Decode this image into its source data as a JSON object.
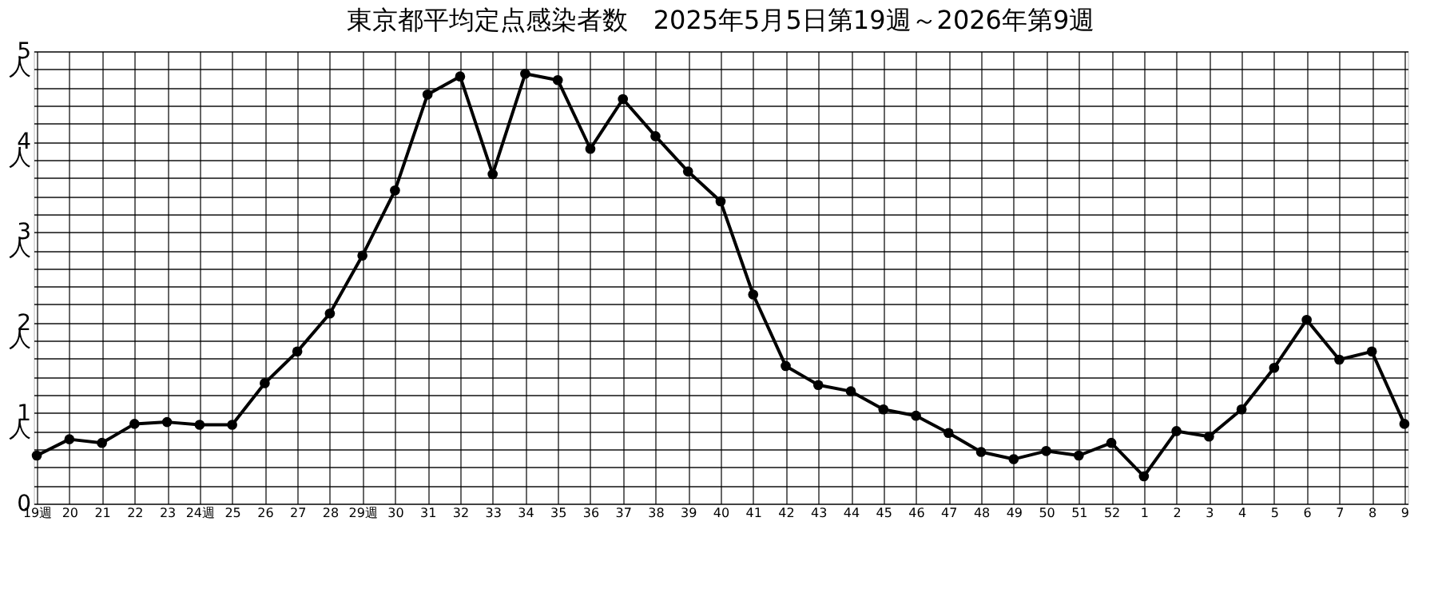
{
  "chart_data": {
    "type": "line",
    "title": "東京都平均定点感染者数　2025年5月5日第19週～2026年第9週",
    "categories": [
      "19週",
      "20",
      "21",
      "22",
      "23",
      "24週",
      "25",
      "26",
      "27",
      "28",
      "29週",
      "30",
      "31",
      "32",
      "33",
      "34",
      "35",
      "36",
      "37",
      "38",
      "39",
      "40",
      "41",
      "42",
      "43",
      "44",
      "45",
      "46",
      "47",
      "48",
      "49",
      "50",
      "51",
      "52",
      "1",
      "2",
      "3",
      "4",
      "5",
      "6",
      "7",
      "8",
      "9"
    ],
    "series": [
      {
        "color": "#000000",
        "values": [
          0.53,
          0.71,
          0.67,
          0.88,
          0.9,
          0.87,
          0.87,
          1.33,
          1.68,
          2.1,
          2.74,
          3.46,
          4.52,
          4.72,
          3.64,
          4.75,
          4.68,
          3.92,
          4.47,
          4.06,
          3.67,
          3.34,
          2.31,
          1.52,
          1.31,
          1.24,
          1.04,
          0.97,
          0.78,
          0.57,
          0.49,
          0.58,
          0.53,
          0.67,
          0.3,
          0.8,
          0.74,
          1.04,
          1.5,
          2.03,
          1.59,
          1.68,
          0.88
        ]
      }
    ],
    "ylim": [
      0,
      5
    ],
    "yticks": [
      0,
      {
        "value": 0.2,
        "label": null
      },
      {
        "value": 0.4,
        "label": null
      },
      {
        "value": 0.6,
        "label": null
      },
      {
        "value": 0.8,
        "label": null
      },
      {
        "value": 1,
        "label": "1\n人"
      },
      {
        "value": 1.2,
        "label": null
      },
      {
        "value": 1.4,
        "label": null
      },
      {
        "value": 1.6,
        "label": null
      },
      {
        "value": 1.8,
        "label": null
      },
      {
        "value": 2,
        "label": "2\n人"
      },
      {
        "value": 2.2,
        "label": null
      },
      {
        "value": 2.4,
        "label": null
      },
      {
        "value": 2.6,
        "label": null
      },
      {
        "value": 2.8,
        "label": null
      },
      {
        "value": 3,
        "label": "3\n人"
      },
      {
        "value": 3.2,
        "label": null
      },
      {
        "value": 3.4,
        "label": null
      },
      {
        "value": 3.6,
        "label": null
      },
      {
        "value": 3.8,
        "label": null
      },
      {
        "value": 4,
        "label": "4\n人"
      },
      {
        "value": 4.2,
        "label": null
      },
      {
        "value": 4.4,
        "label": null
      },
      {
        "value": 4.6,
        "label": null
      },
      {
        "value": 4.8,
        "label": null
      },
      {
        "value": 5,
        "label": "5\n人"
      }
    ],
    "grid": true,
    "marker": "circle",
    "line_style": "solid"
  }
}
